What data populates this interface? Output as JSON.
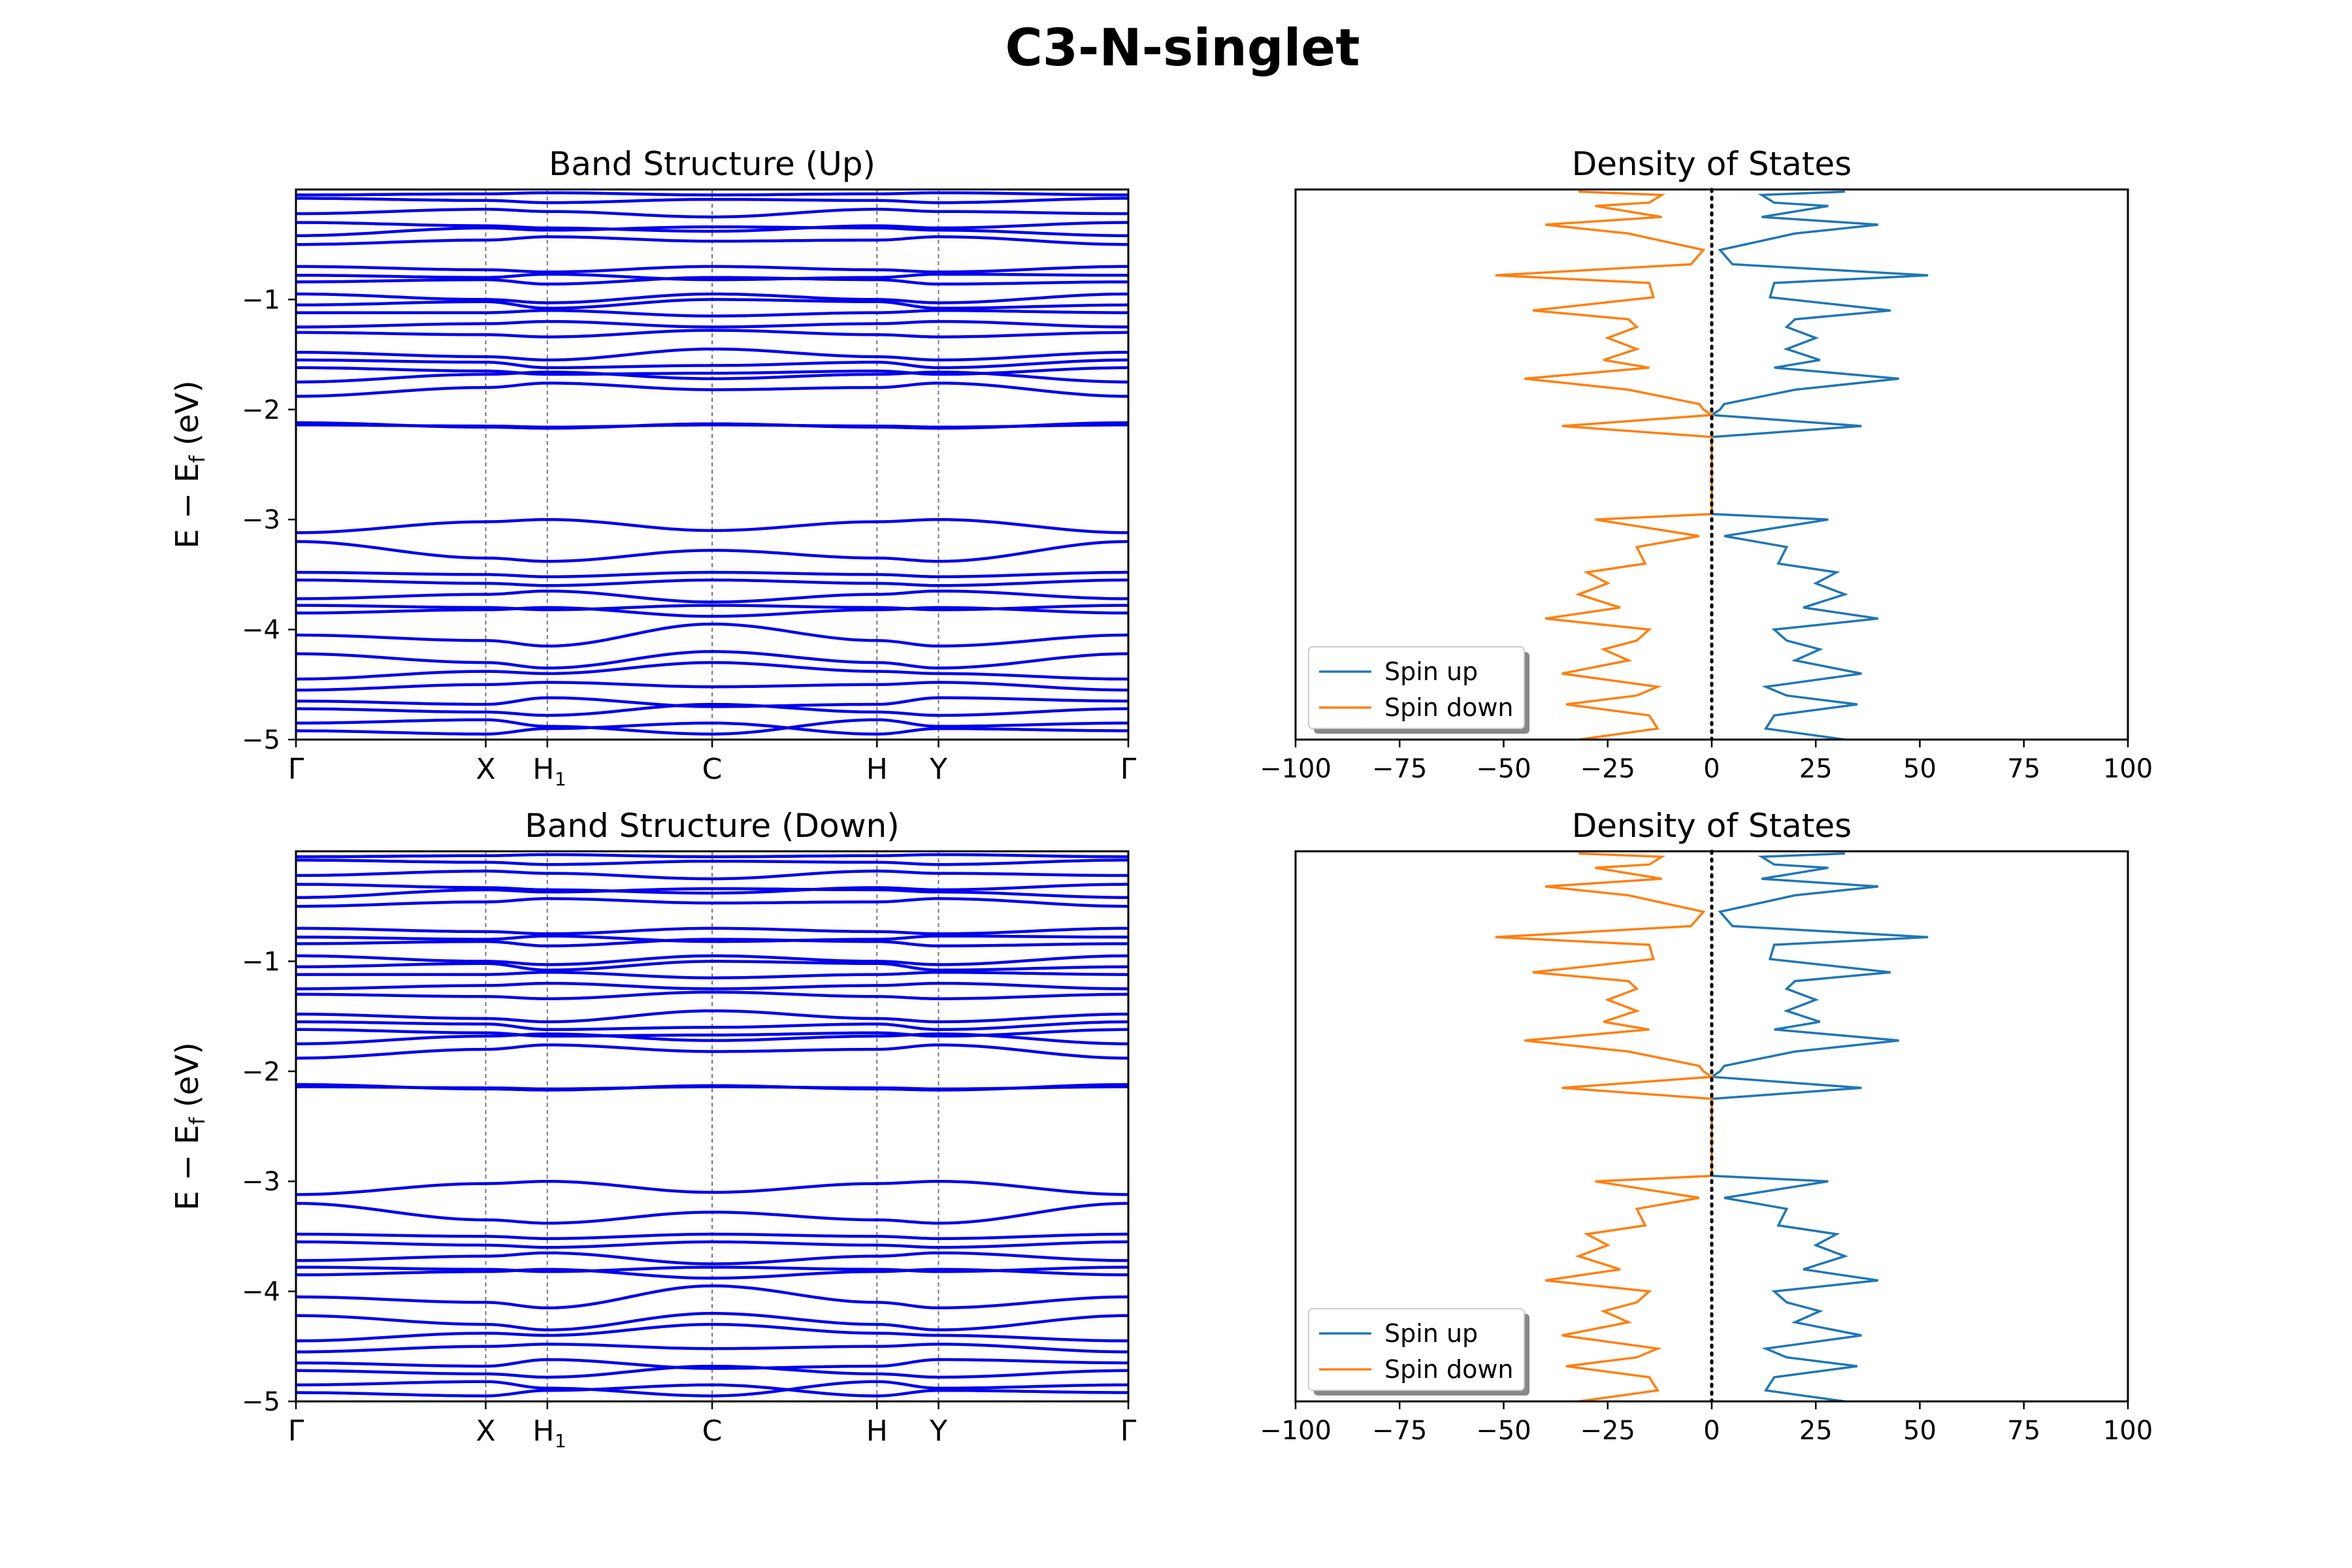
{
  "figure": {
    "title": "C3-N-singlet"
  },
  "chart_data": [
    {
      "type": "line",
      "title": "Band Structure (Up)",
      "ylabel": "E − E_f (eV)",
      "xlabel": "",
      "ylim": [
        -5,
        0
      ],
      "y_ticks": [
        "−1",
        "−2",
        "−3",
        "−4",
        "−5"
      ],
      "y_tick_values": [
        -1,
        -2,
        -3,
        -4,
        -5
      ],
      "k_labels": [
        "Γ",
        "X",
        "H₁",
        "C",
        "H",
        "Y",
        "Γ"
      ],
      "k_positions": [
        0,
        0.228,
        0.302,
        0.5,
        0.698,
        0.772,
        1
      ],
      "band_color": "#0000ee",
      "bands": [
        {
          "y": [
            -0.05,
            -0.04,
            -0.03,
            -0.05,
            -0.04,
            -0.03,
            -0.05
          ]
        },
        {
          "y": [
            -0.08,
            -0.1,
            -0.12,
            -0.09,
            -0.1,
            -0.12,
            -0.08
          ]
        },
        {
          "y": [
            -0.22,
            -0.18,
            -0.2,
            -0.25,
            -0.18,
            -0.2,
            -0.22
          ]
        },
        {
          "y": [
            -0.3,
            -0.33,
            -0.35,
            -0.38,
            -0.33,
            -0.35,
            -0.3
          ]
        },
        {
          "y": [
            -0.42,
            -0.35,
            -0.37,
            -0.34,
            -0.35,
            -0.37,
            -0.42
          ]
        },
        {
          "y": [
            -0.5,
            -0.46,
            -0.43,
            -0.47,
            -0.46,
            -0.43,
            -0.5
          ]
        },
        {
          "y": [
            -0.7,
            -0.73,
            -0.75,
            -0.7,
            -0.73,
            -0.75,
            -0.7
          ]
        },
        {
          "y": [
            -0.78,
            -0.8,
            -0.77,
            -0.82,
            -0.8,
            -0.77,
            -0.78
          ]
        },
        {
          "y": [
            -0.84,
            -0.82,
            -0.86,
            -0.8,
            -0.82,
            -0.86,
            -0.84
          ]
        },
        {
          "y": [
            -0.95,
            -1.0,
            -1.03,
            -0.95,
            -1.0,
            -1.03,
            -0.95
          ]
        },
        {
          "y": [
            -1.05,
            -1.02,
            -1.08,
            -1.0,
            -1.02,
            -1.08,
            -1.05
          ]
        },
        {
          "y": [
            -1.12,
            -1.12,
            -1.1,
            -1.15,
            -1.12,
            -1.1,
            -1.12
          ]
        },
        {
          "y": [
            -1.25,
            -1.22,
            -1.2,
            -1.25,
            -1.22,
            -1.2,
            -1.25
          ]
        },
        {
          "y": [
            -1.3,
            -1.32,
            -1.34,
            -1.28,
            -1.32,
            -1.34,
            -1.3
          ]
        },
        {
          "y": [
            -1.48,
            -1.52,
            -1.55,
            -1.45,
            -1.52,
            -1.55,
            -1.48
          ]
        },
        {
          "y": [
            -1.55,
            -1.57,
            -1.62,
            -1.6,
            -1.57,
            -1.62,
            -1.55
          ]
        },
        {
          "y": [
            -1.62,
            -1.65,
            -1.68,
            -1.67,
            -1.65,
            -1.68,
            -1.62
          ]
        },
        {
          "y": [
            -1.75,
            -1.68,
            -1.66,
            -1.72,
            -1.68,
            -1.66,
            -1.75
          ]
        },
        {
          "y": [
            -1.88,
            -1.8,
            -1.76,
            -1.82,
            -1.8,
            -1.76,
            -1.88
          ]
        },
        {
          "y": [
            -2.12,
            -2.16,
            -2.17,
            -2.13,
            -2.16,
            -2.17,
            -2.12
          ]
        },
        {
          "y": [
            -2.14,
            -2.15,
            -2.16,
            -2.14,
            -2.15,
            -2.16,
            -2.14
          ]
        },
        {
          "y": [
            -3.12,
            -3.02,
            -3.0,
            -3.1,
            -3.02,
            -3.0,
            -3.12
          ]
        },
        {
          "y": [
            -3.2,
            -3.35,
            -3.38,
            -3.28,
            -3.35,
            -3.38,
            -3.2
          ]
        },
        {
          "y": [
            -3.48,
            -3.5,
            -3.52,
            -3.48,
            -3.5,
            -3.52,
            -3.48
          ]
        },
        {
          "y": [
            -3.55,
            -3.58,
            -3.6,
            -3.55,
            -3.58,
            -3.6,
            -3.55
          ]
        },
        {
          "y": [
            -3.72,
            -3.68,
            -3.65,
            -3.75,
            -3.68,
            -3.65,
            -3.72
          ]
        },
        {
          "y": [
            -3.78,
            -3.8,
            -3.82,
            -3.78,
            -3.8,
            -3.82,
            -3.78
          ]
        },
        {
          "y": [
            -3.85,
            -3.82,
            -3.8,
            -3.88,
            -3.82,
            -3.8,
            -3.85
          ]
        },
        {
          "y": [
            -4.05,
            -4.1,
            -4.15,
            -3.95,
            -4.1,
            -4.15,
            -4.05
          ]
        },
        {
          "y": [
            -4.22,
            -4.3,
            -4.35,
            -4.2,
            -4.3,
            -4.35,
            -4.22
          ]
        },
        {
          "y": [
            -4.45,
            -4.38,
            -4.4,
            -4.3,
            -4.38,
            -4.4,
            -4.45
          ]
        },
        {
          "y": [
            -4.55,
            -4.5,
            -4.48,
            -4.52,
            -4.5,
            -4.48,
            -4.55
          ]
        },
        {
          "y": [
            -4.65,
            -4.68,
            -4.62,
            -4.7,
            -4.68,
            -4.62,
            -4.65
          ]
        },
        {
          "y": [
            -4.72,
            -4.75,
            -4.78,
            -4.68,
            -4.75,
            -4.78,
            -4.72
          ]
        },
        {
          "y": [
            -4.85,
            -4.82,
            -4.88,
            -4.95,
            -4.82,
            -4.88,
            -4.85
          ]
        },
        {
          "y": [
            -4.92,
            -4.95,
            -4.9,
            -4.85,
            -4.95,
            -4.9,
            -4.92
          ]
        }
      ]
    },
    {
      "type": "line",
      "title": "Density of States",
      "xlabel": "",
      "ylabel": "",
      "xlim": [
        -100,
        100
      ],
      "ylim": [
        -5,
        0
      ],
      "x_ticks": [
        "−100",
        "−75",
        "−50",
        "−25",
        "0",
        "25",
        "50",
        "75",
        "100"
      ],
      "x_tick_values": [
        -100,
        -75,
        -50,
        -25,
        0,
        25,
        50,
        75,
        100
      ],
      "fermi_line_x": 0,
      "legend": {
        "position": "lower-left",
        "entries": [
          "Spin up",
          "Spin down"
        ]
      },
      "series": [
        {
          "name": "Spin up",
          "color": "#1f77b4",
          "x": [
            32,
            12,
            15,
            28,
            12,
            40,
            20,
            2,
            5,
            52,
            15,
            14,
            43,
            20,
            18,
            25,
            18,
            26,
            15,
            45,
            20,
            3,
            2,
            0,
            36,
            0,
            0,
            0,
            0,
            0,
            0,
            28,
            3,
            18,
            16,
            30,
            25,
            32,
            22,
            40,
            15,
            18,
            26,
            20,
            36,
            13,
            18,
            35,
            15,
            13,
            32
          ],
          "y": [
            -0.02,
            -0.05,
            -0.12,
            -0.15,
            -0.25,
            -0.32,
            -0.4,
            -0.55,
            -0.68,
            -0.78,
            -0.85,
            -0.98,
            -1.1,
            -1.18,
            -1.25,
            -1.35,
            -1.45,
            -1.55,
            -1.62,
            -1.72,
            -1.82,
            -1.95,
            -2.0,
            -2.05,
            -2.15,
            -2.25,
            -2.35,
            -2.5,
            -2.65,
            -2.8,
            -2.95,
            -3.0,
            -3.15,
            -3.25,
            -3.4,
            -3.48,
            -3.58,
            -3.68,
            -3.8,
            -3.9,
            -4.0,
            -4.1,
            -4.18,
            -4.28,
            -4.4,
            -4.52,
            -4.6,
            -4.68,
            -4.78,
            -4.9,
            -5.0
          ]
        },
        {
          "name": "Spin down",
          "color": "#ff7f0e",
          "x": [
            -32,
            -12,
            -15,
            -28,
            -12,
            -40,
            -20,
            -2,
            -5,
            -52,
            -15,
            -14,
            -43,
            -20,
            -18,
            -25,
            -18,
            -26,
            -15,
            -45,
            -20,
            -3,
            -2,
            0,
            -36,
            0,
            0,
            0,
            0,
            0,
            0,
            -28,
            -3,
            -18,
            -16,
            -30,
            -25,
            -32,
            -22,
            -40,
            -15,
            -18,
            -26,
            -20,
            -36,
            -13,
            -18,
            -35,
            -15,
            -13,
            -32
          ],
          "y": [
            -0.02,
            -0.05,
            -0.12,
            -0.15,
            -0.25,
            -0.32,
            -0.4,
            -0.55,
            -0.68,
            -0.78,
            -0.85,
            -0.98,
            -1.1,
            -1.18,
            -1.25,
            -1.35,
            -1.45,
            -1.55,
            -1.62,
            -1.72,
            -1.82,
            -1.95,
            -2.0,
            -2.05,
            -2.15,
            -2.25,
            -2.35,
            -2.5,
            -2.65,
            -2.8,
            -2.95,
            -3.0,
            -3.15,
            -3.25,
            -3.4,
            -3.48,
            -3.58,
            -3.68,
            -3.8,
            -3.9,
            -4.0,
            -4.1,
            -4.18,
            -4.28,
            -4.4,
            -4.52,
            -4.6,
            -4.68,
            -4.78,
            -4.9,
            -5.0
          ]
        }
      ]
    },
    {
      "type": "line",
      "title": "Band Structure (Down)",
      "ylabel": "E − E_f (eV)",
      "xlabel": "",
      "ylim": [
        -5,
        0
      ],
      "y_ticks": [
        "−1",
        "−2",
        "−3",
        "−4",
        "−5"
      ],
      "y_tick_values": [
        -1,
        -2,
        -3,
        -4,
        -5
      ],
      "k_labels": [
        "Γ",
        "X",
        "H₁",
        "C",
        "H",
        "Y",
        "Γ"
      ],
      "k_positions": [
        0,
        0.228,
        0.302,
        0.5,
        0.698,
        0.772,
        1
      ],
      "band_color": "#0000ee",
      "bands": "same-as-up"
    },
    {
      "type": "line",
      "title": "Density of States",
      "xlabel": "",
      "ylabel": "",
      "xlim": [
        -100,
        100
      ],
      "ylim": [
        -5,
        0
      ],
      "x_ticks": [
        "−100",
        "−75",
        "−50",
        "−25",
        "0",
        "25",
        "50",
        "75",
        "100"
      ],
      "x_tick_values": [
        -100,
        -75,
        -50,
        -25,
        0,
        25,
        50,
        75,
        100
      ],
      "fermi_line_x": 0,
      "legend": {
        "position": "lower-left",
        "entries": [
          "Spin up",
          "Spin down"
        ]
      },
      "series": "same-as-upper-dos"
    }
  ]
}
